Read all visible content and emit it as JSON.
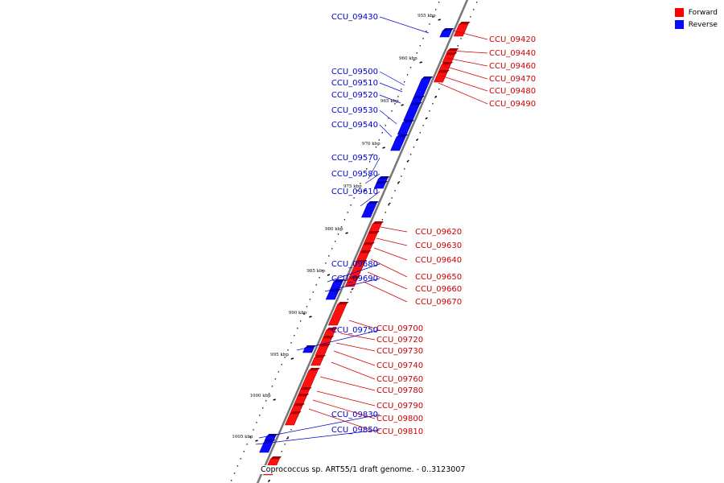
{
  "legend": {
    "forward_label": "Forward",
    "reverse_label": "Reverse",
    "forward_color": "#ff0000",
    "reverse_color": "#0a0aff"
  },
  "caption": "Coprococcus sp. ART55/1 draft genome. - 0..3123007",
  "scale_labels": [
    "955 kbp",
    "960 kbp",
    "965 kbp",
    "970 kbp",
    "975 kbp",
    "980 kbp",
    "985 kbp",
    "990 kbp",
    "995 kbp",
    "1000 kbp",
    "1005 kbp"
  ],
  "reverse_genes": [
    "CCU_09430",
    "CCU_09500",
    "CCU_09510",
    "CCU_09520",
    "CCU_09530",
    "CCU_09540",
    "CCU_09570",
    "CCU_09580",
    "CCU_09610",
    "CCU_09680",
    "CCU_09690",
    "CCU_09750",
    "CCU_09830",
    "CCU_09850"
  ],
  "forward_genes": [
    "CCU_09420",
    "CCU_09440",
    "CCU_09460",
    "CCU_09470",
    "CCU_09480",
    "CCU_09490",
    "CCU_09620",
    "CCU_09630",
    "CCU_09640",
    "CCU_09650",
    "CCU_09660",
    "CCU_09670",
    "CCU_09700",
    "CCU_09720",
    "CCU_09730",
    "CCU_09740",
    "CCU_09760",
    "CCU_09780",
    "CCU_09790",
    "CCU_09800",
    "CCU_09810"
  ]
}
